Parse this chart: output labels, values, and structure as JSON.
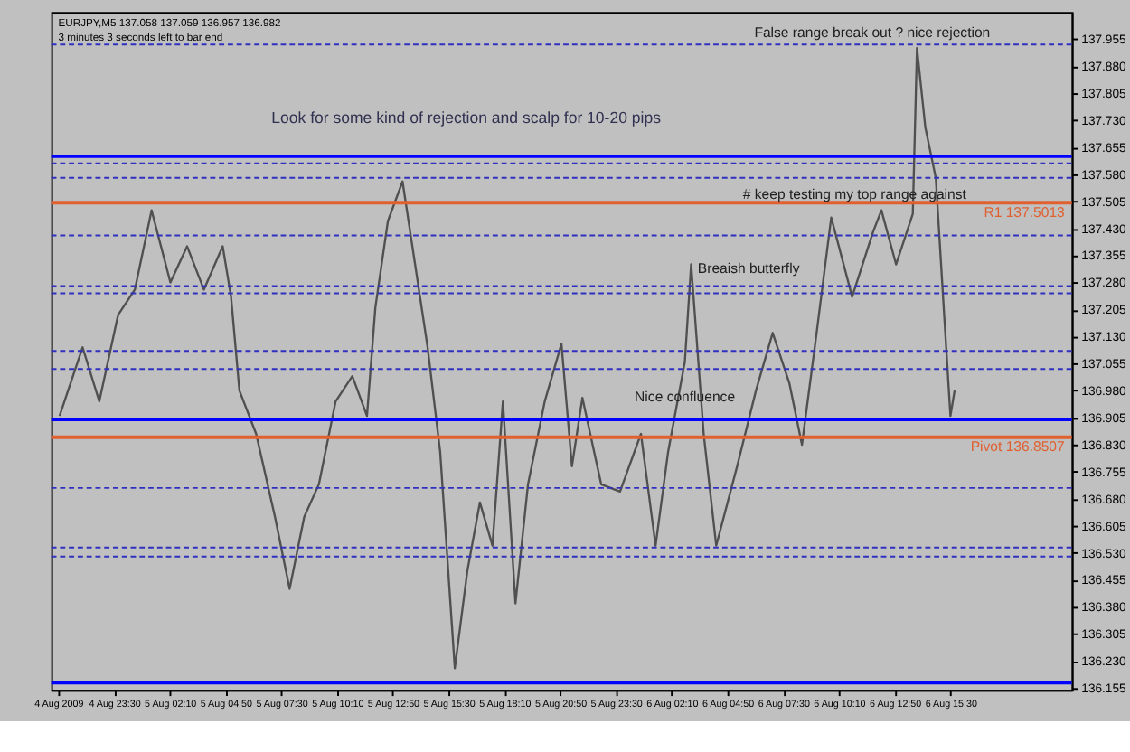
{
  "chart_data": {
    "type": "line",
    "title": "EURJPY,M5  137.058 137.059 136.957 136.982",
    "subtitle": "3 minutes 3 seconds left to bar end",
    "x": [
      "2009-08-04T20:54",
      "2009-08-04T22:00",
      "2009-08-04T22:48",
      "2009-08-04T23:42",
      "2009-08-05T00:30",
      "2009-08-05T01:18",
      "2009-08-05T02:12",
      "2009-08-05T03:00",
      "2009-08-05T03:48",
      "2009-08-05T04:42",
      "2009-08-05T05:06",
      "2009-08-05T05:30",
      "2009-08-05T06:18",
      "2009-08-05T07:12",
      "2009-08-05T07:54",
      "2009-08-05T08:36",
      "2009-08-05T09:18",
      "2009-08-05T10:06",
      "2009-08-05T10:54",
      "2009-08-05T11:36",
      "2009-08-05T12:00",
      "2009-08-05T12:36",
      "2009-08-05T13:18",
      "2009-08-05T13:54",
      "2009-08-05T14:30",
      "2009-08-05T15:06",
      "2009-08-05T15:48",
      "2009-08-05T16:24",
      "2009-08-05T17:00",
      "2009-08-05T17:36",
      "2009-08-05T18:06",
      "2009-08-05T18:42",
      "2009-08-05T19:18",
      "2009-08-05T20:06",
      "2009-08-05T20:54",
      "2009-08-05T21:24",
      "2009-08-05T21:54",
      "2009-08-05T22:48",
      "2009-08-05T23:42",
      "2009-08-06T00:42",
      "2009-08-06T01:24",
      "2009-08-06T02:00",
      "2009-08-06T02:48",
      "2009-08-06T03:06",
      "2009-08-06T03:42",
      "2009-08-06T04:18",
      "2009-08-06T05:18",
      "2009-08-06T06:12",
      "2009-08-06T07:00",
      "2009-08-06T07:48",
      "2009-08-06T08:24",
      "2009-08-06T09:06",
      "2009-08-06T09:48",
      "2009-08-06T10:48",
      "2009-08-06T11:48",
      "2009-08-06T12:12",
      "2009-08-06T12:54",
      "2009-08-06T13:42",
      "2009-08-06T13:54",
      "2009-08-06T14:18",
      "2009-08-06T14:48",
      "2009-08-06T15:12",
      "2009-08-06T15:30",
      "2009-08-06T15:42"
    ],
    "series": [
      {
        "color": "#505050",
        "values": [
          136.91,
          137.1,
          136.95,
          137.19,
          137.26,
          137.48,
          137.28,
          137.38,
          137.26,
          137.38,
          137.24,
          136.98,
          136.86,
          136.63,
          136.43,
          136.63,
          136.72,
          136.95,
          137.02,
          136.91,
          137.21,
          137.45,
          137.56,
          137.33,
          137.1,
          136.81,
          136.21,
          136.48,
          136.67,
          136.55,
          136.95,
          136.39,
          136.72,
          136.95,
          137.11,
          136.77,
          136.96,
          136.72,
          136.7,
          136.86,
          136.55,
          136.81,
          137.06,
          137.33,
          136.86,
          136.55,
          136.77,
          136.98,
          137.14,
          137.0,
          136.83,
          137.14,
          137.46,
          137.24,
          137.42,
          137.48,
          137.33,
          137.47,
          137.93,
          137.71,
          137.57,
          137.19,
          136.91,
          136.98
        ]
      }
    ],
    "xlim": [
      "2009-08-04T20:30",
      "2009-08-06T21:18"
    ],
    "xticks": [
      {
        "value": "2009-08-04T20:50",
        "label": "4 Aug 2009"
      },
      {
        "value": "2009-08-04T23:30",
        "label": "4 Aug 23:30"
      },
      {
        "value": "2009-08-05T02:10",
        "label": "5 Aug 02:10"
      },
      {
        "value": "2009-08-05T04:50",
        "label": "5 Aug 04:50"
      },
      {
        "value": "2009-08-05T07:30",
        "label": "5 Aug 07:30"
      },
      {
        "value": "2009-08-05T10:10",
        "label": "5 Aug 10:10"
      },
      {
        "value": "2009-08-05T12:50",
        "label": "5 Aug 12:50"
      },
      {
        "value": "2009-08-05T15:30",
        "label": "5 Aug 15:30"
      },
      {
        "value": "2009-08-05T18:10",
        "label": "5 Aug 18:10"
      },
      {
        "value": "2009-08-05T20:50",
        "label": "5 Aug 20:50"
      },
      {
        "value": "2009-08-05T23:30",
        "label": "5 Aug 23:30"
      },
      {
        "value": "2009-08-06T02:10",
        "label": "6 Aug 02:10"
      },
      {
        "value": "2009-08-06T04:50",
        "label": "6 Aug 04:50"
      },
      {
        "value": "2009-08-06T07:30",
        "label": "6 Aug 07:30"
      },
      {
        "value": "2009-08-06T10:10",
        "label": "6 Aug 10:10"
      },
      {
        "value": "2009-08-06T12:50",
        "label": "6 Aug 12:50"
      },
      {
        "value": "2009-08-06T15:30",
        "label": "6 Aug 15:30"
      }
    ],
    "ylim": [
      136.15,
      138.03
    ],
    "yticks": [
      136.155,
      {
        "value": 136.23,
        "label": "136.230"
      },
      136.305,
      {
        "value": 136.38,
        "label": "136.380"
      },
      136.455,
      {
        "value": 136.53,
        "label": "136.530"
      },
      136.605,
      {
        "value": 136.68,
        "label": "136.680"
      },
      136.755,
      {
        "value": 136.83,
        "label": "136.830"
      },
      136.905,
      {
        "value": 136.98,
        "label": "136.980"
      },
      137.055,
      {
        "value": 137.13,
        "label": "137.130"
      },
      137.205,
      {
        "value": 137.28,
        "label": "137.280"
      },
      137.355,
      {
        "value": 137.43,
        "label": "137.430"
      },
      137.505,
      {
        "value": 137.58,
        "label": "137.580"
      },
      137.655,
      {
        "value": 137.73,
        "label": "137.730"
      },
      137.805,
      {
        "value": 137.88,
        "label": "137.880"
      },
      137.955
    ],
    "ref_lines": [
      {
        "axis": "y",
        "value": 137.94,
        "color": "#3030c0",
        "line_style": "dashed"
      },
      {
        "axis": "y",
        "value": 137.63,
        "color": "#0000ff",
        "line_style": "solid"
      },
      {
        "axis": "y",
        "value": 137.61,
        "color": "#3030c0",
        "line_style": "dashed"
      },
      {
        "axis": "y",
        "value": 137.57,
        "color": "#3030c0",
        "line_style": "dashed"
      },
      {
        "axis": "y",
        "value": 137.5013,
        "label": "R1 137.5013",
        "color": "#e06030",
        "line_style": "solid"
      },
      {
        "axis": "y",
        "value": 137.41,
        "color": "#3030c0",
        "line_style": "dashed"
      },
      {
        "axis": "y",
        "value": 137.27,
        "color": "#3030c0",
        "line_style": "dashed"
      },
      {
        "axis": "y",
        "value": 137.25,
        "color": "#3030c0",
        "line_style": "dashed"
      },
      {
        "axis": "y",
        "value": 137.09,
        "color": "#3030c0",
        "line_style": "dashed"
      },
      {
        "axis": "y",
        "value": 137.04,
        "color": "#3030c0",
        "line_style": "dashed"
      },
      {
        "axis": "y",
        "value": 136.9,
        "color": "#0000ff",
        "line_style": "solid"
      },
      {
        "axis": "y",
        "value": 136.8507,
        "label": "Pivot 136.8507",
        "color": "#e06030",
        "line_style": "solid"
      },
      {
        "axis": "y",
        "value": 136.71,
        "color": "#3030c0",
        "line_style": "dashed"
      },
      {
        "axis": "y",
        "value": 136.545,
        "color": "#3030c0",
        "line_style": "dashed"
      },
      {
        "axis": "y",
        "value": 136.52,
        "color": "#3030c0",
        "line_style": "dashed"
      },
      {
        "axis": "y",
        "value": 136.17,
        "color": "#0000ff",
        "line_style": "solid"
      }
    ],
    "annotations": [
      "Look for some kind of rejection and scalp for 10-20 pips",
      "False range break out ? nice rejection",
      "Breaish butterfly",
      "# keep testing my top range against",
      {
        "text": "Nice confluence",
        "x": "2009-08-06T02:48",
        "y": 136.96
      }
    ]
  }
}
